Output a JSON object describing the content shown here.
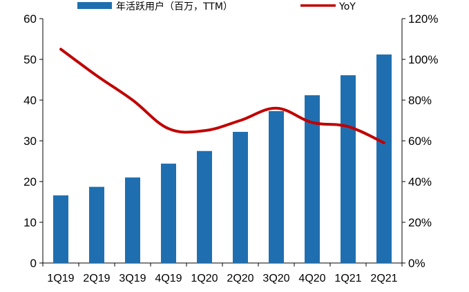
{
  "chart_data": {
    "type": "bar",
    "categories": [
      "1Q19",
      "2Q19",
      "3Q19",
      "4Q19",
      "1Q20",
      "2Q20",
      "3Q20",
      "4Q20",
      "1Q21",
      "2Q21"
    ],
    "series": [
      {
        "name": "年活跃用户（百万，TTM）",
        "type": "bar",
        "axis": "left",
        "values": [
          16.6,
          18.7,
          21.0,
          24.4,
          27.5,
          32.2,
          37.3,
          41.2,
          46.1,
          51.2
        ],
        "color": "#1f6fb0"
      },
      {
        "name": "YoY",
        "type": "line",
        "axis": "right",
        "values": [
          105,
          92,
          80,
          66,
          65,
          70,
          76,
          69,
          67,
          59
        ],
        "color": "#c00000"
      }
    ],
    "y_left": {
      "min": 0,
      "max": 60,
      "ticks": [
        "0",
        "10",
        "20",
        "30",
        "40",
        "50",
        "60"
      ]
    },
    "y_right": {
      "min": 0,
      "max": 120,
      "ticks": [
        "0%",
        "20%",
        "40%",
        "60%",
        "80%",
        "100%",
        "120%"
      ]
    },
    "legend_position": "top"
  }
}
